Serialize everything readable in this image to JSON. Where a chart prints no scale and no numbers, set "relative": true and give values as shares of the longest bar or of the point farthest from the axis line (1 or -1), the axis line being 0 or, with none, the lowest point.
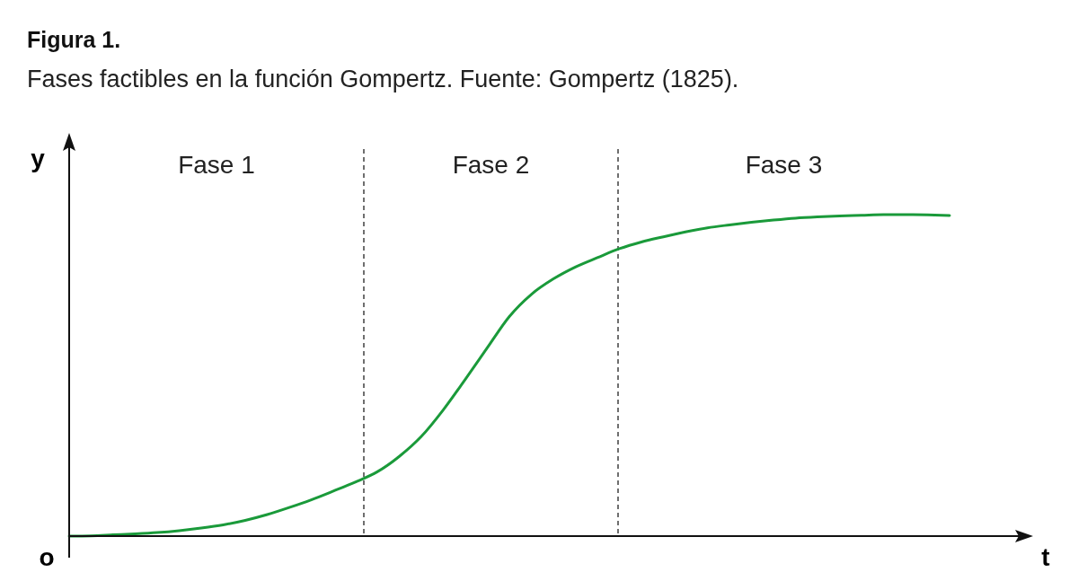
{
  "chart_data": {
    "type": "line",
    "title": "Figura 1.",
    "subtitle": "Fases factibles en la función Gompertz. Fuente: Gompertz (1825).",
    "xlabel": "t",
    "ylabel": "y",
    "relative": true,
    "marker": "none",
    "line_style": "solid",
    "categories": [
      null,
      null,
      null,
      null,
      null,
      null,
      null,
      null,
      null,
      null,
      null,
      null,
      null,
      null,
      null,
      null,
      null,
      null,
      null,
      null,
      null,
      null,
      null,
      null,
      null,
      null,
      null,
      null,
      null,
      null,
      null,
      null,
      null,
      null,
      null,
      null,
      null,
      null,
      null,
      null,
      null
    ],
    "series": [
      {
        "color": "#1a9a3a",
        "values": [
          0,
          0.001,
          0.004,
          0.007,
          0.011,
          0.017,
          0.025,
          0.035,
          0.049,
          0.067,
          0.089,
          0.113,
          0.14,
          0.168,
          0.2,
          0.248,
          0.31,
          0.393,
          0.488,
          0.586,
          0.683,
          0.752,
          0.8,
          0.837,
          0.866,
          0.894,
          0.915,
          0.931,
          0.946,
          0.959,
          0.968,
          0.976,
          0.983,
          0.989,
          0.993,
          0.996,
          0.998,
          1,
          1,
          0.999,
          0.997
        ]
      }
    ],
    "annotations": [
      "Fase 1",
      "Fase 2",
      "Fase 3",
      "o"
    ]
  }
}
